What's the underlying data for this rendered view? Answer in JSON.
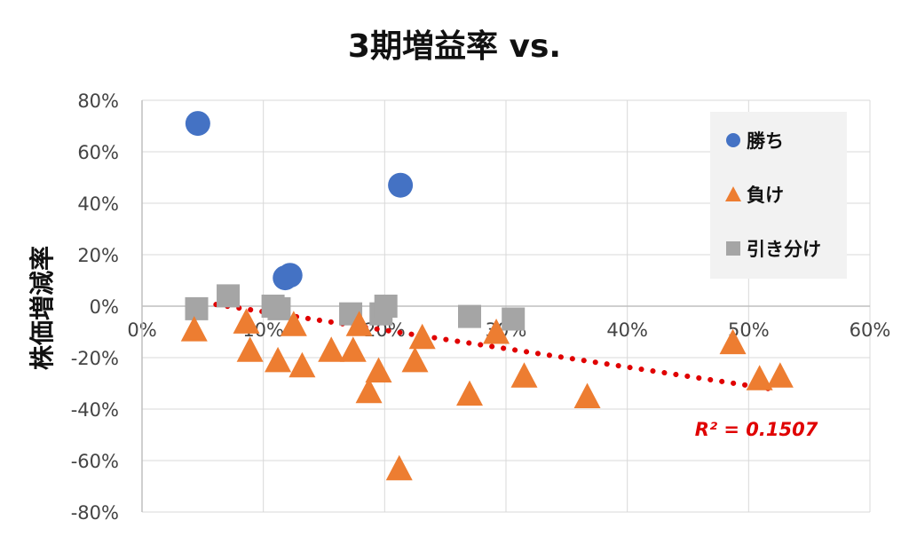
{
  "chart_data": {
    "type": "scatter",
    "title": "3期増益率 vs.",
    "xlabel": "",
    "ylabel": "株価増減率",
    "xlim": [
      0,
      0.6
    ],
    "ylim": [
      -0.8,
      0.8
    ],
    "x_ticks": [
      0,
      0.1,
      0.2,
      0.3,
      0.4,
      0.5,
      0.6
    ],
    "x_tick_labels": [
      "0%",
      "10%",
      "20%",
      "30%",
      "40%",
      "50%",
      "60%"
    ],
    "y_ticks": [
      0.8,
      0.6,
      0.4,
      0.2,
      0,
      -0.2,
      -0.4,
      -0.6,
      -0.8
    ],
    "y_tick_labels": [
      "80%",
      "60%",
      "40%",
      "20%",
      "0%",
      "-20%",
      "-40%",
      "-60%",
      "-80%"
    ],
    "grid": true,
    "legend_position": "top-right",
    "series": [
      {
        "name": "勝ち",
        "marker": "circle",
        "color": "#4472C4",
        "points": [
          [
            0.046,
            0.71
          ],
          [
            0.213,
            0.47
          ],
          [
            0.122,
            0.12
          ],
          [
            0.118,
            0.11
          ]
        ]
      },
      {
        "name": "負け",
        "marker": "triangle",
        "color": "#ED7D31",
        "points": [
          [
            0.043,
            -0.09
          ],
          [
            0.086,
            -0.06
          ],
          [
            0.089,
            -0.17
          ],
          [
            0.112,
            -0.21
          ],
          [
            0.125,
            -0.07
          ],
          [
            0.132,
            -0.23
          ],
          [
            0.156,
            -0.17
          ],
          [
            0.174,
            -0.17
          ],
          [
            0.179,
            -0.07
          ],
          [
            0.187,
            -0.33
          ],
          [
            0.195,
            -0.25
          ],
          [
            0.225,
            -0.21
          ],
          [
            0.231,
            -0.12
          ],
          [
            0.27,
            -0.34
          ],
          [
            0.292,
            -0.1
          ],
          [
            0.315,
            -0.27
          ],
          [
            0.367,
            -0.35
          ],
          [
            0.487,
            -0.14
          ],
          [
            0.509,
            -0.28
          ],
          [
            0.526,
            -0.27
          ],
          [
            0.212,
            -0.63
          ]
        ]
      },
      {
        "name": "引き分け",
        "marker": "square",
        "color": "#A5A5A5",
        "points": [
          [
            0.045,
            -0.01
          ],
          [
            0.071,
            0.04
          ],
          [
            0.108,
            0.0
          ],
          [
            0.172,
            -0.03
          ],
          [
            0.197,
            -0.03
          ],
          [
            0.201,
            0.0
          ],
          [
            0.27,
            -0.04
          ],
          [
            0.306,
            -0.05
          ],
          [
            0.113,
            -0.01
          ]
        ]
      }
    ],
    "trendline": {
      "type": "linear",
      "color": "#E00000",
      "style": "dotted",
      "from": [
        0.042,
        0.02
      ],
      "to": [
        0.516,
        -0.32
      ],
      "label": "R² = 0.1507"
    },
    "colors": {
      "grid": "#D9D9D9",
      "axis": "#BFBFBF",
      "legend_bg": "#F2F2F2"
    }
  }
}
